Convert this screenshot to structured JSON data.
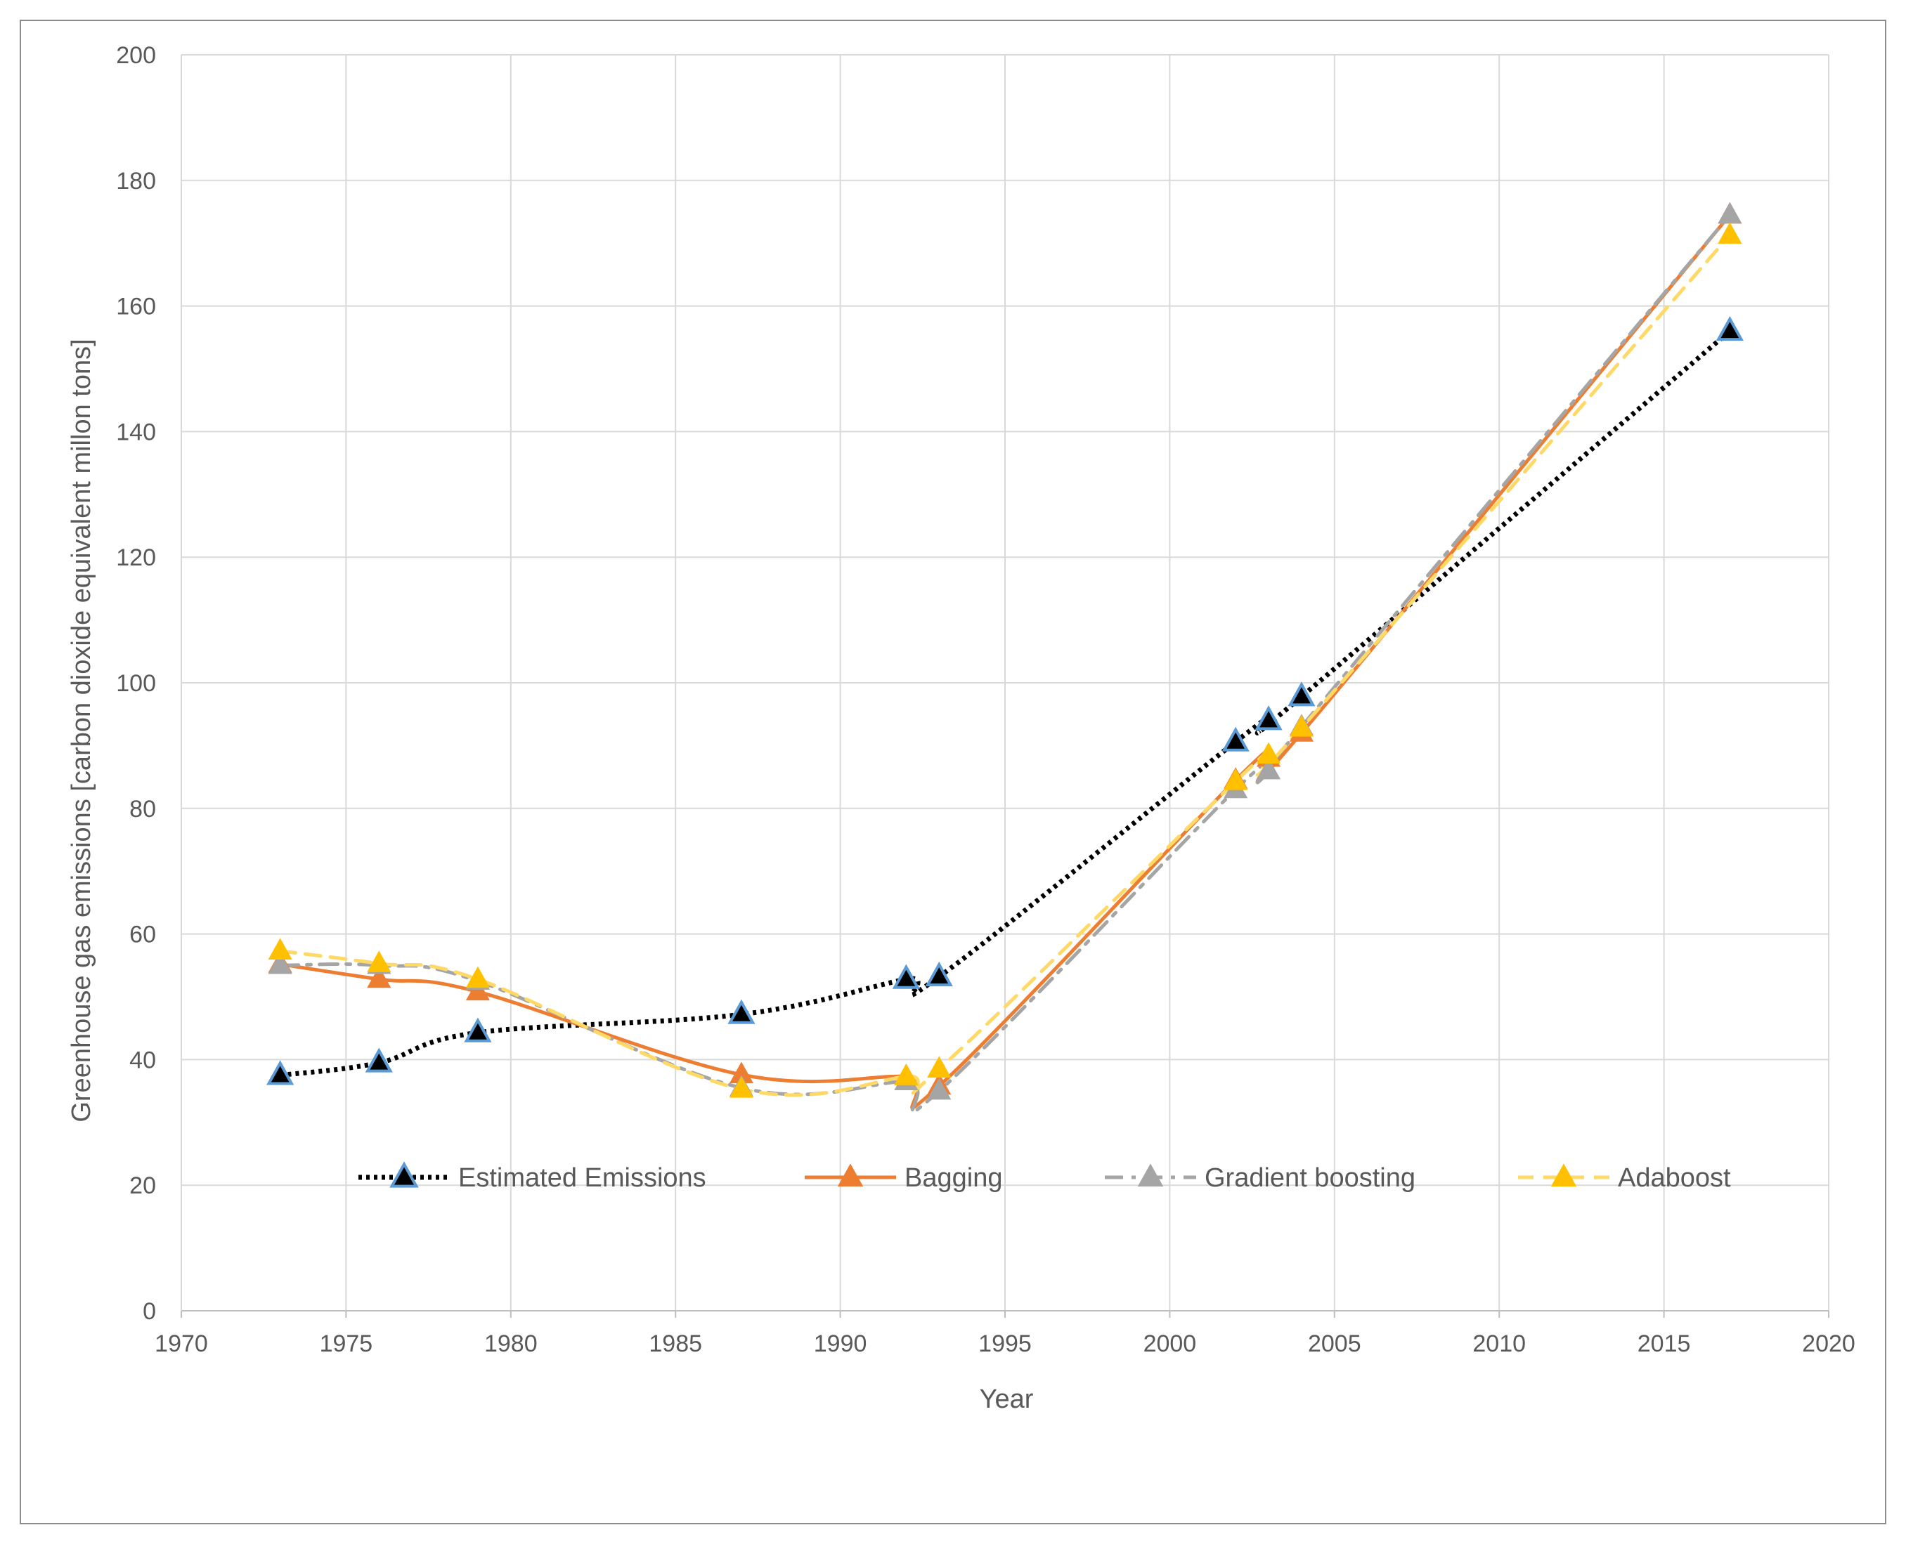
{
  "chart_data": {
    "type": "line",
    "title": "",
    "xlabel": "Year",
    "ylabel": "Greenhouse gas emissions  [carbon dioxide equivalent millon tons]",
    "xlim": [
      1970,
      2020
    ],
    "ylim": [
      0,
      200
    ],
    "x_ticks": [
      "1970",
      "1975",
      "1980",
      "1985",
      "1990",
      "1995",
      "2000",
      "2005",
      "2010",
      "2015",
      "2020"
    ],
    "y_ticks": [
      "0",
      "20",
      "40",
      "60",
      "80",
      "100",
      "120",
      "140",
      "160",
      "180",
      "200"
    ],
    "grid": true,
    "legend_position": "inside-bottom",
    "series": [
      {
        "name": "Estimated Emissions",
        "color": "#000000",
        "marker_color": "#5b9bd5",
        "line_style": "dotted",
        "x": [
          1973,
          1976,
          1979,
          1987,
          1992,
          1993,
          2002,
          2003,
          2004,
          2017
        ],
        "y": [
          37.5,
          39.5,
          44.3,
          47.2,
          52.8,
          53.2,
          90.6,
          94.0,
          97.8,
          156.0
        ]
      },
      {
        "name": "Bagging",
        "color": "#ed7d31",
        "marker_color": "#ed7d31",
        "line_style": "solid",
        "x": [
          1973,
          1976,
          1979,
          1987,
          1992,
          1993,
          2002,
          2003,
          2004,
          2017
        ],
        "y": [
          55.2,
          52.8,
          50.8,
          37.6,
          37.3,
          35.8,
          84.5,
          88.0,
          92.0,
          174.5
        ]
      },
      {
        "name": "Gradient boosting",
        "color": "#a5a5a5",
        "marker_color": "#a5a5a5",
        "line_style": "dashdot",
        "x": [
          1973,
          1976,
          1979,
          1987,
          1992,
          1993,
          2002,
          2003,
          2004,
          2017
        ],
        "y": [
          55.0,
          55.0,
          52.5,
          35.5,
          36.5,
          35.0,
          83.0,
          86.0,
          93.0,
          174.5
        ]
      },
      {
        "name": "Adaboost",
        "color": "#ffd966",
        "marker_color": "#ffc000",
        "line_style": "dashed",
        "x": [
          1973,
          1976,
          1979,
          1987,
          1992,
          1993,
          2002,
          2003,
          2004,
          2017
        ],
        "y": [
          57.3,
          55.3,
          52.8,
          35.3,
          37.3,
          38.5,
          84.3,
          88.5,
          92.8,
          171.3
        ]
      }
    ]
  }
}
